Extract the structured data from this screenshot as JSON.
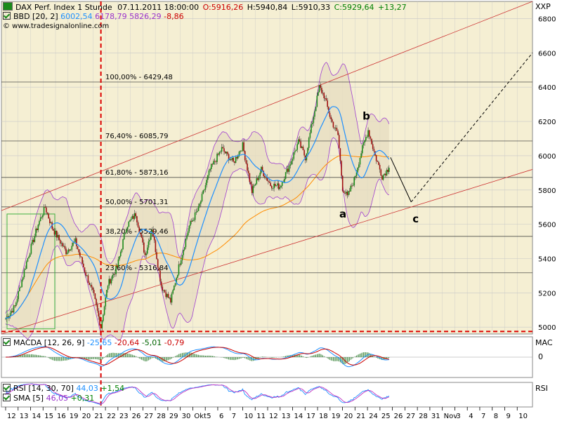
{
  "header": {
    "title": "DAX Perf. Index 1 Stunde",
    "datetime": "07.11.2011 18:00:00",
    "ohlc": [
      {
        "text": "O:5916,26",
        "color": "#cc0000"
      },
      {
        "text": "H:5940,84",
        "color": "#000000"
      },
      {
        "text": "L:5910,33",
        "color": "#000000"
      },
      {
        "text": "C:5929,64",
        "color": "#008000"
      },
      {
        "text": "+13,27",
        "color": "#008000"
      }
    ],
    "bbd": {
      "label": "BBD [20, 2]",
      "v1": "6002,54",
      "v1_color": "#1e90ff",
      "v2": "6178,79",
      "v2_color": "#9932cc",
      "v3": "5826,29",
      "v3_color": "#9932cc",
      "v4": "-8,86",
      "v4_color": "#cc0000"
    },
    "copyright": "© www.tradesignalonline.com",
    "symbol": "XXP"
  },
  "macd": {
    "label": "MACDA [12, 26, 9]",
    "v1": "-25,65",
    "v1_color": "#1e90ff",
    "v2": "-20,64",
    "v2_color": "#cc0000",
    "v3": "-5,01",
    "v3_color": "#006400",
    "v4": "-0,79",
    "v4_color": "#cc0000",
    "axis_label": "MAC",
    "zero_tick": "0"
  },
  "rsi": {
    "label": "RSI [14, 30, 70]",
    "v1": "44,03",
    "v1_color": "#1e90ff",
    "v2": "+1,54",
    "v2_color": "#008000",
    "axis_label": "RSI"
  },
  "sma": {
    "label": "SMA [5]",
    "v1": "46,05",
    "v1_color": "#9932cc",
    "v2": "+0,31",
    "v2_color": "#008000"
  },
  "fib": [
    {
      "label": "100,00% - 6429,48",
      "value": 6429.48
    },
    {
      "label": "76,40% - 6085,79",
      "value": 6085.79
    },
    {
      "label": "61,80% - 5873,16",
      "value": 5873.16
    },
    {
      "label": "50,00% - 5701,31",
      "value": 5701.31
    },
    {
      "label": "38,20% - 5529,46",
      "value": 5529.46
    },
    {
      "label": "23,60% - 5316,84",
      "value": 5316.84
    }
  ],
  "annotations": [
    "a",
    "b",
    "c"
  ],
  "colors": {
    "background": "#f5efd3",
    "grid": "#c8c8c8",
    "channel": "#cc3333",
    "bb_fill": "#e6dcc0",
    "bb_bands": "#a040d0",
    "bb_mid": "#1e90ff",
    "ma200": "#ff8c00",
    "up_candle": "#1a8a1a",
    "down_candle": "#a01010",
    "dashed": "#dd0000",
    "box": "#40b040"
  },
  "chart_data": {
    "type": "candlestick",
    "symbol": "DAX Perf. Index",
    "interval": "1 Stunde",
    "y_ticks": [
      5000,
      5200,
      5400,
      5600,
      5800,
      6000,
      6200,
      6400,
      6600,
      6800
    ],
    "ylim": [
      4960,
      6900
    ],
    "x_tick_labels": [
      "12",
      "13",
      "14",
      "15",
      "16",
      "19",
      "20",
      "21",
      "22",
      "23",
      "26",
      "27",
      "28",
      "29",
      "30",
      "Okt",
      "5",
      "6",
      "7",
      "10",
      "11",
      "12",
      "13",
      "14",
      "17",
      "18",
      "19",
      "20",
      "21",
      "24",
      "25",
      "26",
      "27",
      "28",
      "31",
      "Nov",
      "3",
      "4",
      "7",
      "8",
      "9",
      "10"
    ],
    "series_path": [
      {
        "i": 0,
        "v": 5050
      },
      {
        "i": 8,
        "v": 5120
      },
      {
        "i": 18,
        "v": 5380
      },
      {
        "i": 28,
        "v": 5600
      },
      {
        "i": 34,
        "v": 5700
      },
      {
        "i": 40,
        "v": 5580
      },
      {
        "i": 52,
        "v": 5440
      },
      {
        "i": 60,
        "v": 5500
      },
      {
        "i": 68,
        "v": 5330
      },
      {
        "i": 76,
        "v": 5180
      },
      {
        "i": 82,
        "v": 5000
      },
      {
        "i": 88,
        "v": 5250
      },
      {
        "i": 96,
        "v": 5350
      },
      {
        "i": 104,
        "v": 5590
      },
      {
        "i": 112,
        "v": 5660
      },
      {
        "i": 120,
        "v": 5420
      },
      {
        "i": 126,
        "v": 5580
      },
      {
        "i": 134,
        "v": 5240
      },
      {
        "i": 142,
        "v": 5150
      },
      {
        "i": 150,
        "v": 5380
      },
      {
        "i": 158,
        "v": 5590
      },
      {
        "i": 166,
        "v": 5690
      },
      {
        "i": 176,
        "v": 5920
      },
      {
        "i": 186,
        "v": 6040
      },
      {
        "i": 196,
        "v": 5960
      },
      {
        "i": 204,
        "v": 6060
      },
      {
        "i": 212,
        "v": 5790
      },
      {
        "i": 220,
        "v": 5920
      },
      {
        "i": 228,
        "v": 5830
      },
      {
        "i": 236,
        "v": 5820
      },
      {
        "i": 244,
        "v": 5940
      },
      {
        "i": 252,
        "v": 6080
      },
      {
        "i": 258,
        "v": 5990
      },
      {
        "i": 264,
        "v": 6200
      },
      {
        "i": 270,
        "v": 6400
      },
      {
        "i": 274,
        "v": 6350
      },
      {
        "i": 280,
        "v": 6210
      },
      {
        "i": 286,
        "v": 6120
      },
      {
        "i": 290,
        "v": 5810
      },
      {
        "i": 294,
        "v": 5760
      },
      {
        "i": 300,
        "v": 5860
      },
      {
        "i": 306,
        "v": 6020
      },
      {
        "i": 312,
        "v": 6150
      },
      {
        "i": 318,
        "v": 6000
      },
      {
        "i": 324,
        "v": 5880
      },
      {
        "i": 330,
        "v": 5929.64
      }
    ],
    "last_close": 5929.64,
    "channel": {
      "upper": [
        {
          "x": 0,
          "v": 5680
        },
        {
          "x": 1,
          "v": 6900
        }
      ],
      "lower": [
        {
          "x": 0,
          "v": 4960
        },
        {
          "x": 1,
          "v": 5920
        }
      ],
      "stop_line": 4975
    },
    "projection": [
      {
        "label": "c",
        "from": 5990,
        "to": 5730
      },
      {
        "label": "target",
        "from": 5730,
        "to": 6600
      }
    ]
  }
}
